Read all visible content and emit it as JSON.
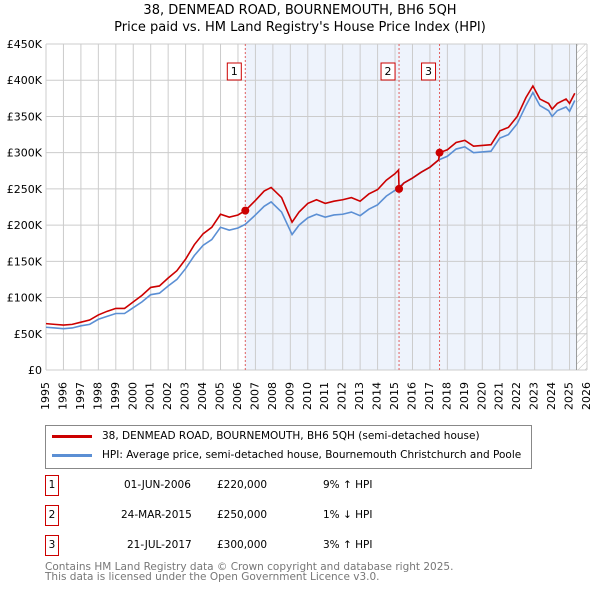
{
  "title": "38, DENMEAD ROAD, BOURNEMOUTH, BH6 5QH",
  "subtitle": "Price paid vs. HM Land Registry's House Price Index (HPI)",
  "chart_data": {
    "type": "line",
    "xlim": [
      1995,
      2026
    ],
    "ylim": [
      0,
      450000
    ],
    "yticks": [
      0,
      50000,
      100000,
      150000,
      200000,
      250000,
      300000,
      350000,
      400000,
      450000
    ],
    "ytick_labels": [
      "£0",
      "£50K",
      "£100K",
      "£150K",
      "£200K",
      "£250K",
      "£300K",
      "£350K",
      "£400K",
      "£450K"
    ],
    "xticks": [
      1995,
      1996,
      1997,
      1998,
      1999,
      2000,
      2001,
      2002,
      2003,
      2004,
      2005,
      2006,
      2007,
      2008,
      2009,
      2010,
      2011,
      2012,
      2013,
      2014,
      2015,
      2016,
      2017,
      2018,
      2019,
      2020,
      2021,
      2022,
      2023,
      2024,
      2025,
      2026
    ],
    "grid": true,
    "data_end": 2025.4,
    "series": [
      {
        "name": "38, DENMEAD ROAD, BOURNEMOUTH, BH6 5QH (semi-detached house)",
        "color": "#cc0000",
        "x": [
          1995,
          1995.5,
          1996,
          1996.5,
          1997,
          1997.5,
          1998,
          1998.5,
          1999,
          1999.5,
          2000,
          2000.5,
          2001,
          2001.5,
          2002,
          2002.5,
          2003,
          2003.5,
          2004,
          2004.5,
          2005,
          2005.5,
          2006,
          2006.42,
          2007,
          2007.5,
          2007.9,
          2008.5,
          2009.1,
          2009.5,
          2010,
          2010.5,
          2011,
          2011.5,
          2012,
          2012.5,
          2013,
          2013.5,
          2014,
          2014.5,
          2015,
          2015.2,
          2015.23,
          2015.5,
          2016,
          2016.5,
          2017,
          2017.5,
          2017.55,
          2018,
          2018.5,
          2019,
          2019.5,
          2020,
          2020.5,
          2021,
          2021.5,
          2022,
          2022.5,
          2022.9,
          2023.3,
          2023.8,
          2024,
          2024.3,
          2024.8,
          2025,
          2025.3
        ],
        "y": [
          64000,
          63000,
          62000,
          63000,
          66000,
          69000,
          76000,
          81000,
          85000,
          85000,
          94000,
          103000,
          114000,
          116000,
          127000,
          137000,
          153000,
          173000,
          188000,
          197000,
          215000,
          211000,
          214000,
          220000,
          234000,
          247000,
          252000,
          238000,
          204000,
          218000,
          230000,
          235000,
          230000,
          233000,
          235000,
          238000,
          233000,
          243000,
          249000,
          262000,
          271000,
          276000,
          250000,
          258000,
          265000,
          273000,
          280000,
          290000,
          300000,
          304000,
          314000,
          317000,
          309000,
          310000,
          311000,
          330000,
          335000,
          350000,
          376000,
          392000,
          374000,
          368000,
          360000,
          368000,
          374000,
          368000,
          382000
        ]
      },
      {
        "name": "HPI: Average price, semi-detached house, Bournemouth Christchurch and Poole",
        "color": "#5b8fd4",
        "x": [
          1995,
          1995.5,
          1996,
          1996.5,
          1997,
          1997.5,
          1998,
          1998.5,
          1999,
          1999.5,
          2000,
          2000.5,
          2001,
          2001.5,
          2002,
          2002.5,
          2003,
          2003.5,
          2004,
          2004.5,
          2005,
          2005.5,
          2006,
          2006.42,
          2007,
          2007.5,
          2007.9,
          2008.5,
          2009.1,
          2009.5,
          2010,
          2010.5,
          2011,
          2011.5,
          2012,
          2012.5,
          2013,
          2013.5,
          2014,
          2014.5,
          2015,
          2015.5,
          2016,
          2016.5,
          2017,
          2017.5,
          2018,
          2018.5,
          2019,
          2019.5,
          2020,
          2020.5,
          2021,
          2021.5,
          2022,
          2022.5,
          2022.9,
          2023.3,
          2023.8,
          2024,
          2024.3,
          2024.8,
          2025,
          2025.3
        ],
        "y": [
          59000,
          58000,
          57000,
          58000,
          61000,
          63000,
          70000,
          74000,
          78000,
          78000,
          86000,
          94000,
          104000,
          106000,
          116000,
          125000,
          140000,
          158000,
          172000,
          180000,
          197000,
          193000,
          196000,
          201000,
          214000,
          226000,
          232000,
          218000,
          187000,
          200000,
          210000,
          215000,
          211000,
          214000,
          215000,
          218000,
          213000,
          222000,
          228000,
          240000,
          248000,
          258000,
          265000,
          273000,
          280000,
          290000,
          295000,
          305000,
          308000,
          300000,
          301000,
          302000,
          320000,
          325000,
          340000,
          365000,
          383000,
          365000,
          358000,
          350000,
          358000,
          363000,
          357000,
          372000
        ]
      }
    ],
    "annotations": [
      {
        "label": "1",
        "x": 2006.42,
        "y": 220000
      },
      {
        "label": "2",
        "x": 2015.23,
        "y": 250000
      },
      {
        "label": "3",
        "x": 2017.55,
        "y": 300000
      }
    ]
  },
  "legend": [
    "38, DENMEAD ROAD, BOURNEMOUTH, BH6 5QH (semi-detached house)",
    "HPI: Average price, semi-detached house, Bournemouth Christchurch and Poole"
  ],
  "transactions": [
    {
      "num": "1",
      "date": "01-JUN-2006",
      "price": "£220,000",
      "hpi": "9% ↑ HPI"
    },
    {
      "num": "2",
      "date": "24-MAR-2015",
      "price": "£250,000",
      "hpi": "1% ↓ HPI"
    },
    {
      "num": "3",
      "date": "21-JUL-2017",
      "price": "£300,000",
      "hpi": "3% ↑ HPI"
    }
  ],
  "footer": [
    "Contains HM Land Registry data © Crown copyright and database right 2025.",
    "This data is licensed under the Open Government Licence v3.0."
  ]
}
